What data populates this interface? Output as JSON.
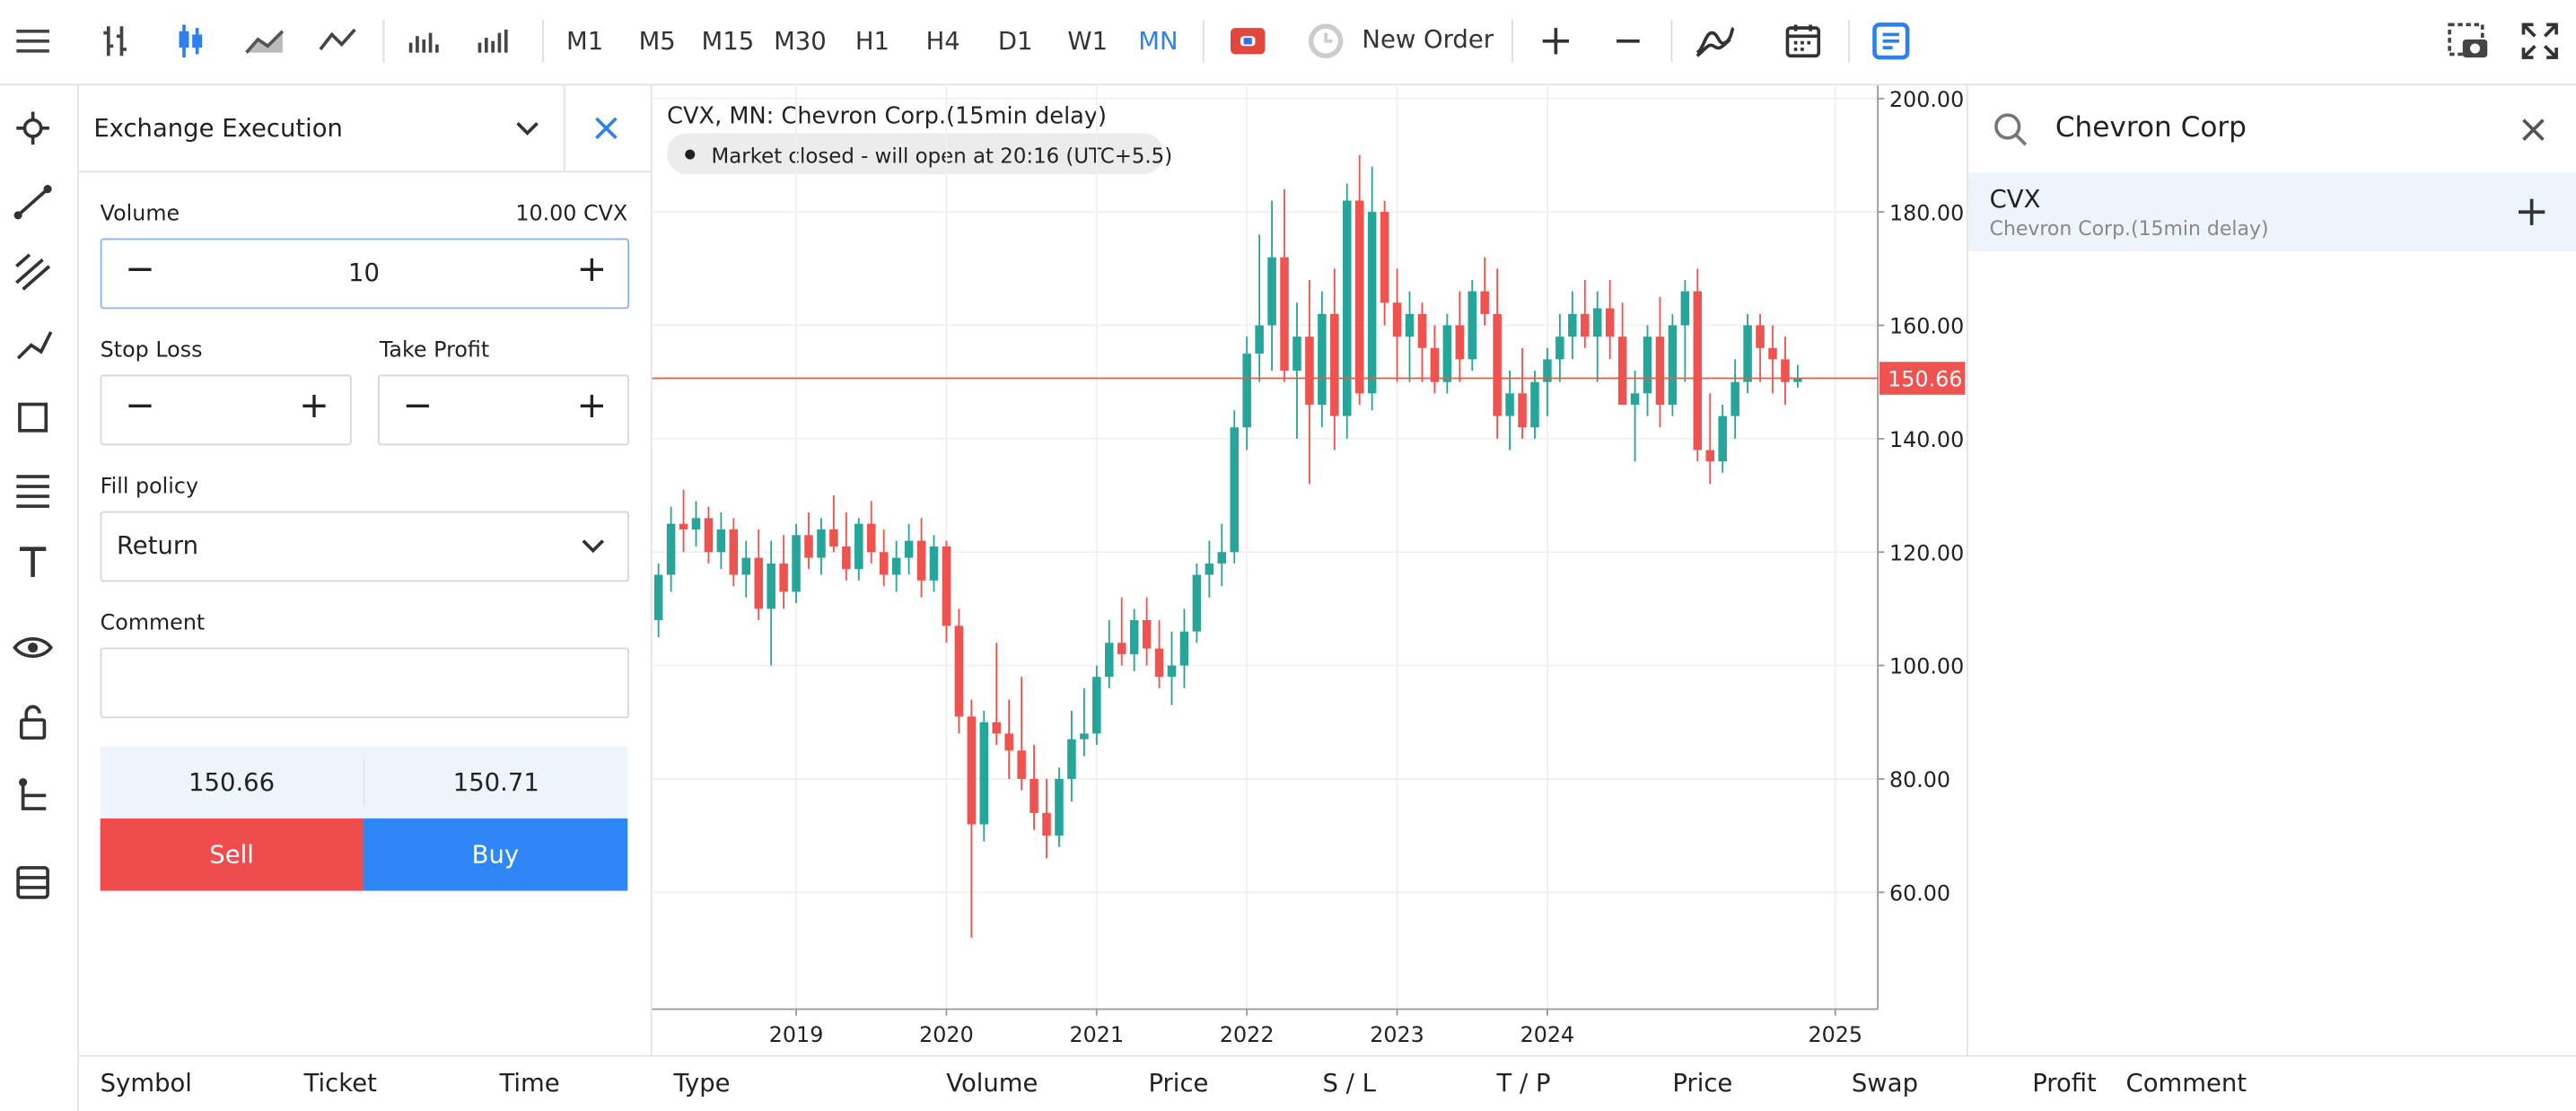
{
  "toolbar": {
    "timeframes": [
      "M1",
      "M5",
      "M15",
      "M30",
      "H1",
      "H4",
      "D1",
      "W1",
      "MN"
    ],
    "new_order": "New Order"
  },
  "order_panel": {
    "title": "Exchange Execution",
    "volume_label": "Volume",
    "volume_unit": "10.00 CVX",
    "volume_input": "10",
    "stop_loss": "Stop Loss",
    "take_profit": "Take Profit",
    "fill_policy_label": "Fill policy",
    "fill_policy": "Return",
    "comment_label": "Comment",
    "bid": "150.66",
    "ask": "150.71",
    "sell": "Sell",
    "buy": "Buy"
  },
  "chart_data": {
    "type": "candlestick",
    "title": "CVX, MN: Chevron Corp.(15min delay)",
    "status": "Market closed - will open at 20:16 (UTC+5.5)",
    "up_color": "#26a69a",
    "down_color": "#ef5350",
    "grid": true,
    "candles": [
      [
        108,
        118,
        105,
        116
      ],
      [
        116,
        128,
        113,
        125
      ],
      [
        125,
        131,
        120,
        124
      ],
      [
        124,
        129,
        121,
        126
      ],
      [
        126,
        128,
        118,
        120
      ],
      [
        120,
        127,
        117,
        124
      ],
      [
        124,
        126,
        114,
        116
      ],
      [
        116,
        122,
        112,
        119
      ],
      [
        119,
        124,
        108,
        110
      ],
      [
        110,
        122,
        100,
        118
      ],
      [
        118,
        123,
        110,
        113
      ],
      [
        113,
        125,
        111,
        123
      ],
      [
        123,
        127,
        117,
        119
      ],
      [
        119,
        126,
        116,
        124
      ],
      [
        124,
        130,
        120,
        121
      ],
      [
        121,
        127,
        115,
        117
      ],
      [
        117,
        126,
        115,
        125
      ],
      [
        125,
        129,
        118,
        120
      ],
      [
        120,
        124,
        114,
        116
      ],
      [
        116,
        122,
        113,
        119
      ],
      [
        119,
        125,
        116,
        122
      ],
      [
        122,
        126,
        112,
        115
      ],
      [
        115,
        123,
        113,
        121
      ],
      [
        121,
        122,
        104,
        107
      ],
      [
        107,
        110,
        88,
        91
      ],
      [
        91,
        94,
        52,
        72
      ],
      [
        72,
        92,
        69,
        90
      ],
      [
        90,
        104,
        86,
        88
      ],
      [
        88,
        94,
        80,
        85
      ],
      [
        85,
        98,
        78,
        80
      ],
      [
        80,
        86,
        71,
        74
      ],
      [
        74,
        80,
        66,
        70
      ],
      [
        70,
        82,
        68,
        80
      ],
      [
        80,
        92,
        76,
        87
      ],
      [
        87,
        96,
        84,
        88
      ],
      [
        88,
        100,
        86,
        98
      ],
      [
        98,
        108,
        96,
        104
      ],
      [
        104,
        112,
        100,
        102
      ],
      [
        102,
        110,
        99,
        108
      ],
      [
        108,
        112,
        100,
        103
      ],
      [
        103,
        108,
        96,
        98
      ],
      [
        98,
        106,
        93,
        100
      ],
      [
        100,
        110,
        96,
        106
      ],
      [
        106,
        118,
        104,
        116
      ],
      [
        116,
        122,
        112,
        118
      ],
      [
        118,
        125,
        114,
        120
      ],
      [
        120,
        145,
        118,
        142
      ],
      [
        142,
        158,
        138,
        155
      ],
      [
        155,
        176,
        150,
        160
      ],
      [
        160,
        182,
        152,
        172
      ],
      [
        172,
        184,
        150,
        152
      ],
      [
        152,
        164,
        140,
        158
      ],
      [
        158,
        168,
        132,
        146
      ],
      [
        146,
        166,
        142,
        162
      ],
      [
        162,
        170,
        138,
        144
      ],
      [
        144,
        185,
        140,
        182
      ],
      [
        182,
        190,
        146,
        148
      ],
      [
        148,
        188,
        145,
        180
      ],
      [
        180,
        182,
        160,
        164
      ],
      [
        164,
        170,
        150,
        158
      ],
      [
        158,
        166,
        150,
        162
      ],
      [
        162,
        164,
        150,
        156
      ],
      [
        156,
        160,
        148,
        150
      ],
      [
        150,
        162,
        148,
        160
      ],
      [
        160,
        166,
        150,
        154
      ],
      [
        154,
        168,
        152,
        166
      ],
      [
        166,
        172,
        160,
        162
      ],
      [
        162,
        170,
        140,
        144
      ],
      [
        144,
        152,
        138,
        148
      ],
      [
        148,
        156,
        140,
        142
      ],
      [
        142,
        152,
        140,
        150
      ],
      [
        150,
        156,
        144,
        154
      ],
      [
        154,
        162,
        150,
        158
      ],
      [
        158,
        166,
        154,
        162
      ],
      [
        162,
        168,
        156,
        158
      ],
      [
        158,
        166,
        150,
        163
      ],
      [
        163,
        168,
        154,
        158
      ],
      [
        158,
        164,
        146,
        146
      ],
      [
        146,
        152,
        136,
        148
      ],
      [
        148,
        160,
        144,
        158
      ],
      [
        158,
        165,
        142,
        146
      ],
      [
        146,
        162,
        144,
        160
      ],
      [
        160,
        168,
        150,
        166
      ],
      [
        166,
        170,
        136,
        138
      ],
      [
        138,
        148,
        132,
        136
      ],
      [
        136,
        146,
        134,
        144
      ],
      [
        144,
        154,
        140,
        150
      ],
      [
        150,
        162,
        148,
        160
      ],
      [
        160,
        162,
        150,
        156
      ],
      [
        156,
        160,
        148,
        154
      ],
      [
        154,
        158,
        146,
        150
      ],
      [
        150,
        153,
        149,
        150.66
      ]
    ],
    "xlim": [
      -0.5,
      97.4
    ],
    "xticks": [
      {
        "value": 11,
        "label": "2019"
      },
      {
        "value": 23,
        "label": "2020"
      },
      {
        "value": 35,
        "label": "2021"
      },
      {
        "value": 47,
        "label": "2022"
      },
      {
        "value": 59,
        "label": "2023"
      },
      {
        "value": 71,
        "label": "2024"
      },
      {
        "value": 94,
        "label": "2025"
      }
    ],
    "ylim": [
      39.4,
      202.3
    ],
    "yticks": [
      {
        "value": 60,
        "label": "60.00"
      },
      {
        "value": 80,
        "label": "80.00"
      },
      {
        "value": 100,
        "label": "100.00"
      },
      {
        "value": 120,
        "label": "120.00"
      },
      {
        "value": 140,
        "label": "140.00"
      },
      {
        "value": 160,
        "label": "160.00"
      },
      {
        "value": 180,
        "label": "180.00"
      },
      {
        "value": 200,
        "label": "200.00"
      }
    ],
    "last_price": {
      "value": 150.66,
      "label": "150.66"
    },
    "last_price_color": "#ef5350"
  },
  "search": {
    "query": "Chevron Corp",
    "results": [
      {
        "symbol": "CVX",
        "description": "Chevron Corp.(15min delay)"
      }
    ]
  },
  "table": {
    "columns": [
      "Symbol",
      "Ticket",
      "Time",
      "Type",
      "Volume",
      "Price",
      "S / L",
      "T / P",
      "Price",
      "Swap",
      "Profit",
      "Comment"
    ]
  }
}
